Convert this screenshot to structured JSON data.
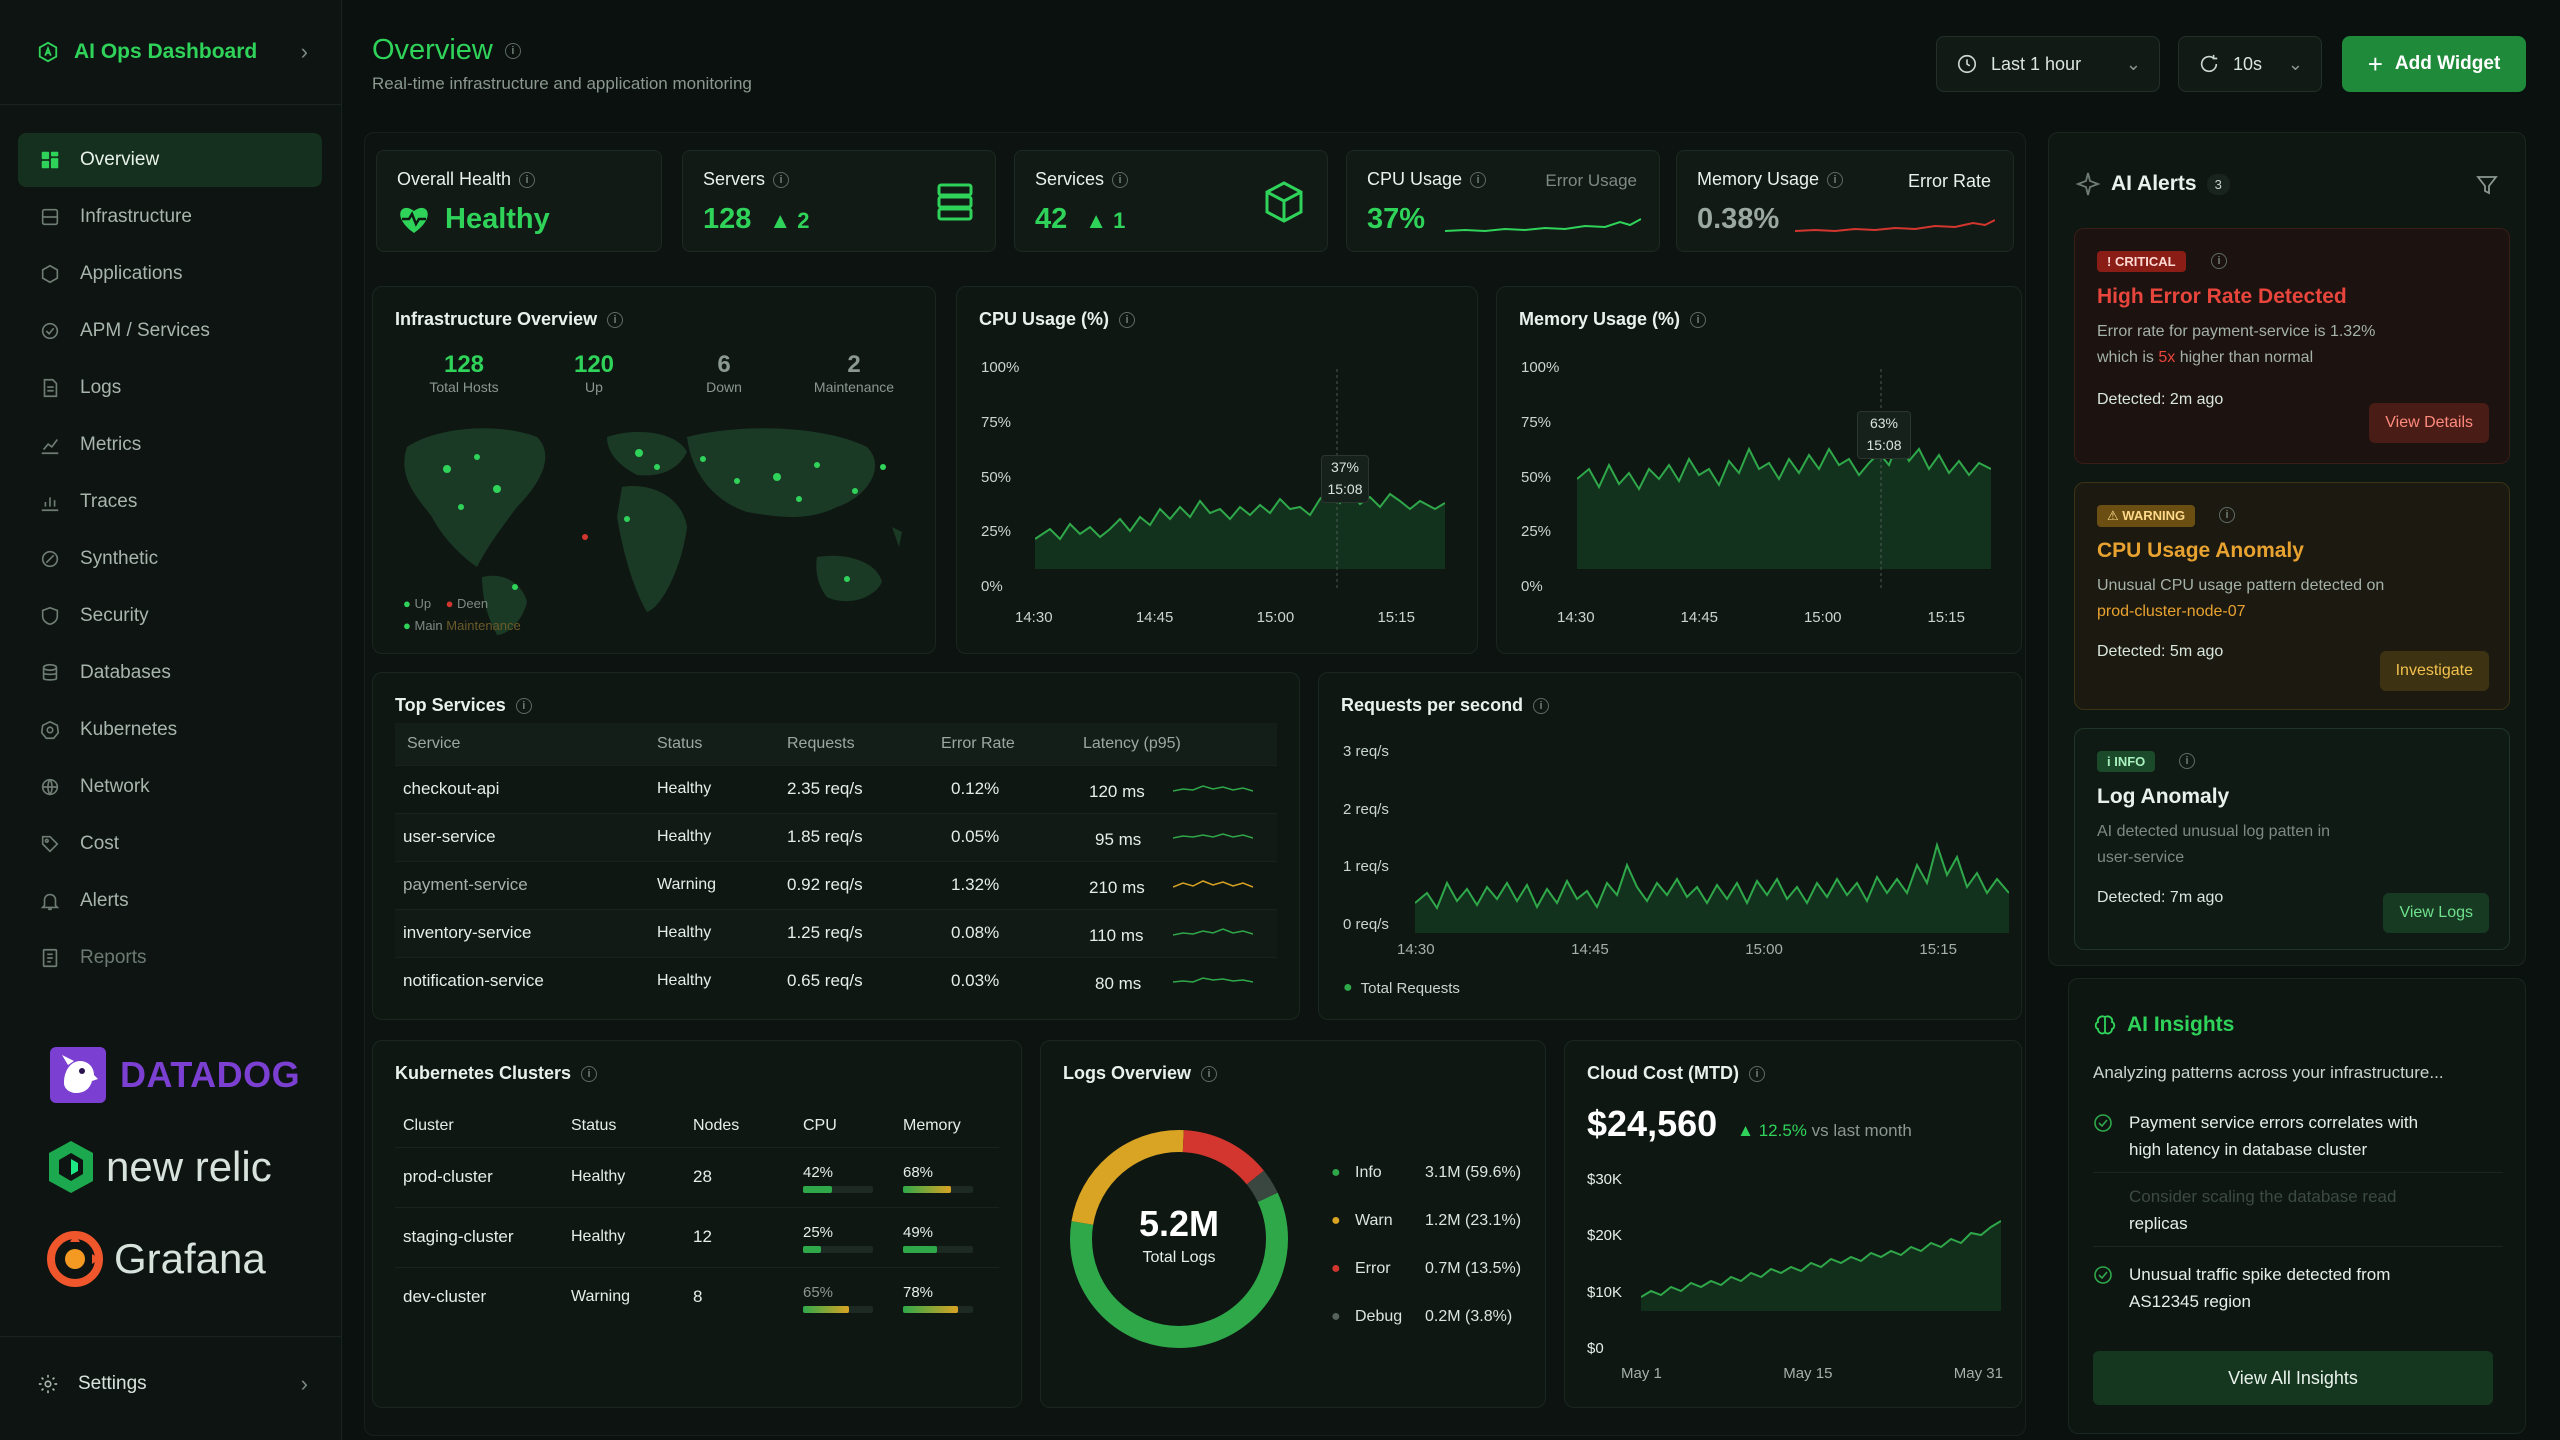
{
  "app": {
    "title": "AI Ops Dashboard"
  },
  "sidebar": {
    "items": [
      {
        "label": "Overview"
      },
      {
        "label": "Infrastructure"
      },
      {
        "label": "Applications"
      },
      {
        "label": "APM / Services"
      },
      {
        "label": "Logs"
      },
      {
        "label": "Metrics"
      },
      {
        "label": "Traces"
      },
      {
        "label": "Synthetic"
      },
      {
        "label": "Security"
      },
      {
        "label": "Databases"
      },
      {
        "label": "Kubernetes"
      },
      {
        "label": "Network"
      },
      {
        "label": "Cost"
      },
      {
        "label": "Alerts"
      },
      {
        "label": "Reports"
      }
    ],
    "logos": {
      "datadog": "DATADOG",
      "newrelic": "new relic",
      "grafana": "Grafana"
    },
    "settings_label": "Settings"
  },
  "header": {
    "title": "Overview",
    "subtitle": "Real-time infrastructure and application monitoring",
    "time_range": "Last 1 hour",
    "refresh": "10s",
    "add_widget": "Add Widget"
  },
  "stats": {
    "health": {
      "label": "Overall Health",
      "value": "Healthy"
    },
    "servers": {
      "label": "Servers",
      "value": "128",
      "delta": "2"
    },
    "services": {
      "label": "Services",
      "value": "42",
      "delta": "1"
    },
    "cpu": {
      "label": "CPU Usage",
      "value": "37%",
      "ghost": "Error Usage"
    },
    "memory": {
      "label": "Memory Usage",
      "value": "0.38%",
      "right": "Error Rate"
    }
  },
  "infra": {
    "title": "Infrastructure Overview",
    "stats": [
      {
        "value": "128",
        "label": "Total Hosts"
      },
      {
        "value": "120",
        "label": "Up"
      },
      {
        "value": "6",
        "label": "Down"
      },
      {
        "value": "2",
        "label": "Maintenance"
      }
    ],
    "legend": {
      "up": "Up",
      "down": "Deen",
      "maint": "Main",
      "extra": "Maintenance"
    }
  },
  "cpu_chart": {
    "title": "CPU Usage (%)",
    "tooltip_value": "37%",
    "tooltip_time": "15:08",
    "y_ticks": [
      "100%",
      "75%",
      "50%",
      "25%",
      "0%"
    ],
    "x_ticks": [
      "14:30",
      "14:45",
      "15:00",
      "15:15"
    ]
  },
  "mem_chart": {
    "title": "Memory Usage (%)",
    "tooltip_value": "63%",
    "tooltip_time": "15:08",
    "y_ticks": [
      "100%",
      "75%",
      "50%",
      "25%",
      "0%"
    ],
    "x_ticks": [
      "14:30",
      "14:45",
      "15:00",
      "15:15"
    ]
  },
  "top_services": {
    "title": "Top Services",
    "headers": [
      "Service",
      "Status",
      "Requests",
      "Error Rate",
      "Latency (p95)"
    ],
    "rows": [
      {
        "service": "checkout-api",
        "status": "Healthy",
        "requests": "2.35 req/s",
        "error": "0.12%",
        "latency": "120 ms"
      },
      {
        "service": "user-service",
        "status": "Healthy",
        "requests": "1.85 req/s",
        "error": "0.05%",
        "latency": "95 ms"
      },
      {
        "service": "payment-service",
        "status": "Warning",
        "requests": "0.92 req/s",
        "error": "1.32%",
        "latency": "210 ms"
      },
      {
        "service": "inventory-service",
        "status": "Healthy",
        "requests": "1.25 req/s",
        "error": "0.08%",
        "latency": "110 ms"
      },
      {
        "service": "notification-service",
        "status": "Healthy",
        "requests": "0.65 req/s",
        "error": "0.03%",
        "latency": "80 ms"
      }
    ]
  },
  "rps": {
    "title": "Requests per second",
    "y_ticks": [
      "3 req/s",
      "2 req/s",
      "1 req/s",
      "0 req/s"
    ],
    "x_ticks": [
      "14:30",
      "14:45",
      "15:00",
      "15:15"
    ],
    "legend": "Total Requests"
  },
  "k8s": {
    "title": "Kubernetes Clusters",
    "headers": [
      "Cluster",
      "Status",
      "Nodes",
      "CPU",
      "Memory"
    ],
    "rows": [
      {
        "cluster": "prod-cluster",
        "status": "Healthy",
        "nodes": "28",
        "cpu": "42%",
        "memory": "68%",
        "cpu_frac": 0.42,
        "mem_frac": 0.68
      },
      {
        "cluster": "staging-cluster",
        "status": "Healthy",
        "nodes": "12",
        "cpu": "25%",
        "memory": "49%",
        "cpu_frac": 0.25,
        "mem_frac": 0.49
      },
      {
        "cluster": "dev-cluster",
        "status": "Warning",
        "nodes": "8",
        "cpu": "65%",
        "memory": "78%",
        "cpu_frac": 0.65,
        "mem_frac": 0.78
      }
    ]
  },
  "logs": {
    "title": "Logs Overview",
    "total": "5.2M",
    "total_label": "Total Logs",
    "items": [
      {
        "label": "Info",
        "value": "3.1M (59.6%)",
        "pct": 59.6,
        "color": "#2fa84a"
      },
      {
        "label": "Warn",
        "value": "1.2M (23.1%)",
        "pct": 23.1,
        "color": "#d9a323"
      },
      {
        "label": "Error",
        "value": "0.7M (13.5%)",
        "pct": 13.5,
        "color": "#d3362e"
      },
      {
        "label": "Debug",
        "value": "0.2M (3.8%)",
        "pct": 3.8,
        "color": "#3a4740"
      }
    ]
  },
  "cost": {
    "title": "Cloud Cost (MTD)",
    "value": "$24,560",
    "change": "12.5%",
    "change_label": "vs last month",
    "y_ticks": [
      "$30K",
      "$20K",
      "$10K",
      "$0"
    ],
    "x_ticks": [
      "May 1",
      "May 15",
      "May 31"
    ]
  },
  "alerts": {
    "title": "AI Alerts",
    "count": "3",
    "items": [
      {
        "badge": "CRITICAL",
        "title": "High Error Rate Detected",
        "desc_a": "Error rate for payment-service is 1.32%",
        "desc_b": "which is ",
        "desc_hl": "5x",
        "desc_c": " higher than normal",
        "detected": "Detected: 2m ago",
        "action": "View Details"
      },
      {
        "badge": "WARNING",
        "title": "CPU Usage Anomaly",
        "desc_a": "Unusual CPU usage pattern detected on",
        "desc_hl": "prod-cluster-node-07",
        "detected": "Detected: 5m ago",
        "action": "Investigate"
      },
      {
        "badge": "INFO",
        "title": "Log Anomaly",
        "desc_a": "AI detected unusual log patten in",
        "desc_b": "user-service",
        "detected": "Detected: 7m ago",
        "action": "View Logs"
      }
    ]
  },
  "insights": {
    "title": "AI Insights",
    "subtitle": "Analyzing patterns across your infrastructure...",
    "items": [
      {
        "line1": "Payment service errors correlates with",
        "line2": "high latency in database cluster"
      },
      {
        "line1": "Consider scaling the database read",
        "line2": "replicas"
      },
      {
        "line1": "Unusual traffic spike detected from",
        "line2": "AS12345 region"
      }
    ],
    "button": "View All Insights"
  },
  "colors": {
    "accent": "#2fd35a",
    "warning": "#e8a230",
    "critical": "#e8453c",
    "background": "#0b110e"
  }
}
